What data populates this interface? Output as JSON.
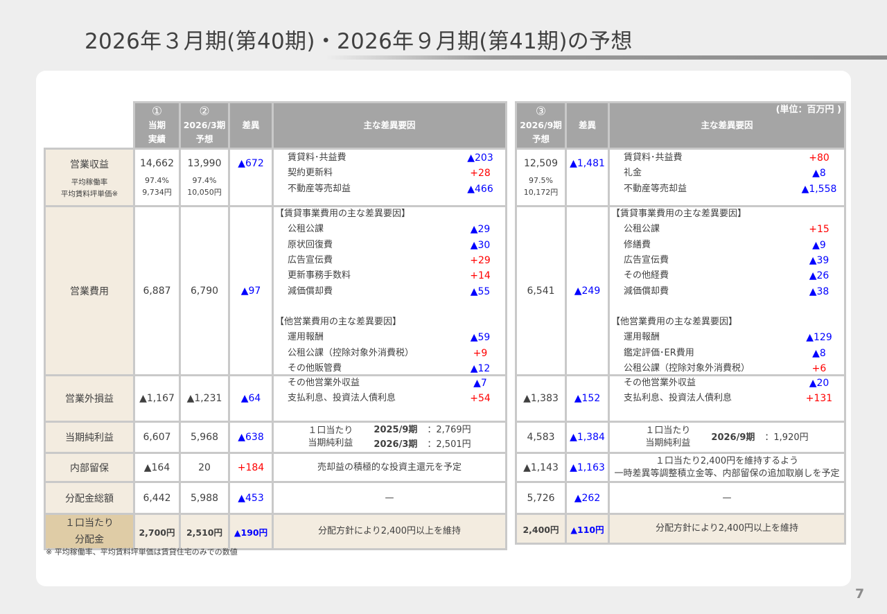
{
  "title": "2026年３月期(第40期)・2026年９月期(第41期)の予想",
  "page_number": "7",
  "unit_note": "(単位：百万円 )",
  "footnote": "※ 平均稼働率、平均賃料坪単価は賃貸住宅のみでの数値",
  "colors": {
    "increase_like": "#0000ff",
    "decrease_like": "#ff0000",
    "header_bg": "#a5a5a5",
    "label_bg": "#f3ece0"
  },
  "left": {
    "headers": [
      {
        "num": "①",
        "lines": [
          "当期",
          "実績"
        ]
      },
      {
        "num": "②",
        "lines": [
          "2026/3期",
          "予想"
        ]
      },
      {
        "num": "",
        "lines": [
          "差異"
        ]
      },
      {
        "num": "",
        "lines": [
          "主な差異要因"
        ]
      }
    ]
  },
  "right": {
    "headers": [
      {
        "num": "③",
        "lines": [
          "2026/9期",
          "予想"
        ]
      },
      {
        "num": "",
        "lines": [
          "差異"
        ]
      },
      {
        "num": "",
        "lines": [
          "主な差異要因"
        ]
      }
    ]
  },
  "rows": [
    {
      "label": "営業収益",
      "sub_labels": [
        "平均稼働率",
        "平均賃料坪単価※"
      ],
      "c1": "14,662",
      "c1_sub": [
        "97.4%",
        "9,734円"
      ],
      "c2": "13,990",
      "c2_sub": [
        "97.4%",
        "10,050円"
      ],
      "diff_l": "▲672",
      "diff_l_color": "blue",
      "factors_l": [
        {
          "text": "賃貸料･共益費",
          "value": "▲203",
          "color": "blue"
        },
        {
          "text": "契約更新料",
          "value": "+28",
          "color": "red"
        },
        {
          "text": "不動産等売却益",
          "value": "▲466",
          "color": "blue"
        }
      ],
      "c3": "12,509",
      "c3_sub": [
        "97.5%",
        "10,172円"
      ],
      "diff_r": "▲1,481",
      "diff_r_color": "blue",
      "factors_r": [
        {
          "text": "賃貸料･共益費",
          "value": "+80",
          "color": "red"
        },
        {
          "text": "礼金",
          "value": "▲8",
          "color": "blue"
        },
        {
          "text": "不動産等売却益",
          "value": "▲1,558",
          "color": "blue"
        }
      ]
    },
    {
      "label": "営業費用",
      "c1": "6,887",
      "c2": "6,790",
      "diff_l": "▲97",
      "diff_l_color": "blue",
      "factors_l": [
        {
          "text": "【賃貸事業費用の主な差異要因】",
          "head": true
        },
        {
          "text": "公租公課",
          "value": "▲29",
          "color": "blue"
        },
        {
          "text": "原状回復費",
          "value": "▲30",
          "color": "blue"
        },
        {
          "text": "広告宣伝費",
          "value": "+29",
          "color": "red"
        },
        {
          "text": "更新事務手数料",
          "value": "+14",
          "color": "red"
        },
        {
          "text": "減価償却費",
          "value": "▲55",
          "color": "blue"
        },
        {
          "text": ""
        },
        {
          "text": "【他営業費用の主な差異要因】",
          "head": true
        },
        {
          "text": "運用報酬",
          "value": "▲59",
          "color": "blue"
        },
        {
          "text": "公租公課（控除対象外消費税）",
          "value": "+9",
          "color": "red"
        },
        {
          "text": "その他販管費",
          "value": "▲12",
          "color": "blue"
        }
      ],
      "c3": "6,541",
      "diff_r": "▲249",
      "diff_r_color": "blue",
      "factors_r": [
        {
          "text": "【賃貸事業費用の主な差異要因】",
          "head": true
        },
        {
          "text": "公租公課",
          "value": "+15",
          "color": "red"
        },
        {
          "text": "修繕費",
          "value": "▲9",
          "color": "blue"
        },
        {
          "text": "広告宣伝費",
          "value": "▲39",
          "color": "blue"
        },
        {
          "text": "その他経費",
          "value": "▲26",
          "color": "blue"
        },
        {
          "text": "減価償却費",
          "value": "▲38",
          "color": "blue"
        },
        {
          "text": ""
        },
        {
          "text": "【他営業費用の主な差異要因】",
          "head": true
        },
        {
          "text": "運用報酬",
          "value": "▲129",
          "color": "blue"
        },
        {
          "text": "鑑定評価･ER費用",
          "value": "▲8",
          "color": "blue"
        },
        {
          "text": "公租公課（控除対象外消費税）",
          "value": "+6",
          "color": "red"
        }
      ]
    },
    {
      "label": "営業外損益",
      "c1": "▲1,167",
      "c2": "▲1,231",
      "diff_l": "▲64",
      "diff_l_color": "blue",
      "factors_l": [
        {
          "text": "その他営業外収益",
          "value": "▲7",
          "color": "blue"
        },
        {
          "text": "支払利息、投資法人債利息",
          "value": "+54",
          "color": "red"
        }
      ],
      "c3": "▲1,383",
      "diff_r": "▲152",
      "diff_r_color": "blue",
      "factors_r": [
        {
          "text": "その他営業外収益",
          "value": "▲20",
          "color": "blue"
        },
        {
          "text": "支払利息、投資法人債利息",
          "value": "+131",
          "color": "red"
        }
      ]
    },
    {
      "label": "当期純利益",
      "c1": "6,607",
      "c2": "5,968",
      "diff_l": "▲638",
      "diff_l_color": "blue",
      "per_unit_label": [
        "１口当たり",
        "当期純利益"
      ],
      "per_unit_l": [
        {
          "period": "2025/9期",
          "value": "：2,769円"
        },
        {
          "period": "2026/3期",
          "value": "：2,501円"
        }
      ],
      "c3": "4,583",
      "diff_r": "▲1,384",
      "diff_r_color": "blue",
      "per_unit_r": [
        {
          "period": "2026/9期",
          "value": "：1,920円"
        }
      ]
    },
    {
      "label": "内部留保",
      "c1": "▲164",
      "c2": "20",
      "diff_l": "+184",
      "diff_l_color": "red",
      "note_l": [
        "売却益の積極的な投資主還元を予定"
      ],
      "c3": "▲1,143",
      "diff_r": "▲1,163",
      "diff_r_color": "blue",
      "note_r": [
        "１口当たり2,400円を維持するよう",
        "一時差異等調整積立金等、内部留保の追加取崩しを予定"
      ]
    },
    {
      "label": "分配金総額",
      "c1": "6,442",
      "c2": "5,988",
      "diff_l": "▲453",
      "diff_l_color": "blue",
      "note_l": [
        "—"
      ],
      "c3": "5,726",
      "diff_r": "▲262",
      "diff_r_color": "blue",
      "note_r": [
        "—"
      ]
    },
    {
      "label": "１口当たり\n分配金",
      "c1": "2,700円",
      "c2": "2,510円",
      "diff_l": "▲190円",
      "diff_l_color": "blue",
      "note_l": [
        "分配方針により2,400円以上を維持"
      ],
      "c3": "2,400円",
      "diff_r": "▲110円",
      "diff_r_color": "blue",
      "note_r": [
        "分配方針により2,400円以上を維持"
      ],
      "bold": true
    }
  ]
}
